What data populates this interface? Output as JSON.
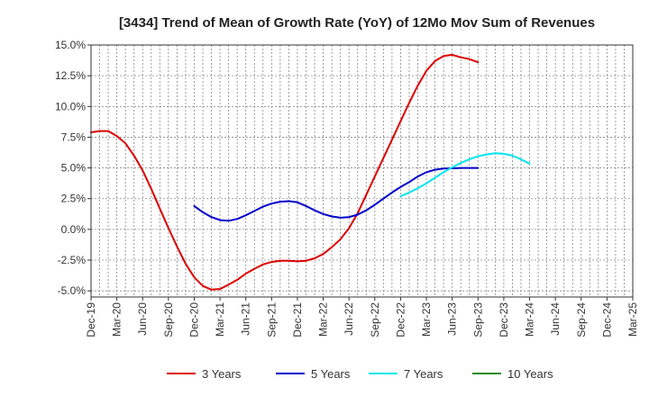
{
  "chart_data": {
    "type": "line",
    "title": "[3434]  Trend of Mean of Growth Rate (YoY) of 12Mo Mov Sum of Revenues",
    "xlabel": "",
    "ylabel": "",
    "ylim": [
      -5.5,
      15.0
    ],
    "y_ticks": [
      15.0,
      12.5,
      10.0,
      7.5,
      5.0,
      2.5,
      0.0,
      -2.5,
      -5.0
    ],
    "y_tick_labels": [
      "15.0%",
      "12.5%",
      "10.0%",
      "7.5%",
      "5.0%",
      "2.5%",
      "0.0%",
      "-2.5%",
      "-5.0%"
    ],
    "x_tick_labels": [
      "Dec-19",
      "Mar-20",
      "Jun-20",
      "Sep-20",
      "Dec-20",
      "Mar-21",
      "Jun-21",
      "Sep-21",
      "Dec-21",
      "Mar-22",
      "Jun-22",
      "Sep-22",
      "Dec-22",
      "Mar-23",
      "Jun-23",
      "Sep-23",
      "Dec-23",
      "Mar-24",
      "Jun-24",
      "Sep-24",
      "Dec-24",
      "Mar-25"
    ],
    "months_total": 63,
    "grid": true,
    "legend_position": "bottom",
    "series": [
      {
        "name": "3 Years",
        "color": "#dd0000",
        "points": [
          [
            0,
            7.9
          ],
          [
            1,
            8.0
          ],
          [
            2,
            8.0
          ],
          [
            3,
            7.6
          ],
          [
            4,
            7.0
          ],
          [
            5,
            6.0
          ],
          [
            6,
            4.8
          ],
          [
            7,
            3.3
          ],
          [
            8,
            1.7
          ],
          [
            9,
            0.1
          ],
          [
            10,
            -1.4
          ],
          [
            11,
            -2.8
          ],
          [
            12,
            -3.9
          ],
          [
            13,
            -4.6
          ],
          [
            14,
            -4.9
          ],
          [
            15,
            -4.85
          ],
          [
            16,
            -4.5
          ],
          [
            17,
            -4.1
          ],
          [
            18,
            -3.6
          ],
          [
            19,
            -3.2
          ],
          [
            20,
            -2.85
          ],
          [
            21,
            -2.65
          ],
          [
            22,
            -2.55
          ],
          [
            23,
            -2.55
          ],
          [
            24,
            -2.6
          ],
          [
            25,
            -2.55
          ],
          [
            26,
            -2.35
          ],
          [
            27,
            -2.0
          ],
          [
            28,
            -1.45
          ],
          [
            29,
            -0.8
          ],
          [
            30,
            0.1
          ],
          [
            31,
            1.3
          ],
          [
            32,
            2.8
          ],
          [
            33,
            4.3
          ],
          [
            34,
            5.8
          ],
          [
            35,
            7.3
          ],
          [
            36,
            8.8
          ],
          [
            37,
            10.3
          ],
          [
            38,
            11.7
          ],
          [
            39,
            12.9
          ],
          [
            40,
            13.7
          ],
          [
            41,
            14.1
          ],
          [
            42,
            14.2
          ],
          [
            43,
            14.0
          ],
          [
            44,
            13.85
          ],
          [
            45,
            13.6
          ]
        ]
      },
      {
        "name": "5 Years",
        "color": "#0000cc",
        "points": [
          [
            12,
            1.9
          ],
          [
            13,
            1.4
          ],
          [
            14,
            1.0
          ],
          [
            15,
            0.75
          ],
          [
            16,
            0.7
          ],
          [
            17,
            0.85
          ],
          [
            18,
            1.15
          ],
          [
            19,
            1.5
          ],
          [
            20,
            1.85
          ],
          [
            21,
            2.1
          ],
          [
            22,
            2.25
          ],
          [
            23,
            2.3
          ],
          [
            24,
            2.2
          ],
          [
            25,
            1.9
          ],
          [
            26,
            1.55
          ],
          [
            27,
            1.25
          ],
          [
            28,
            1.05
          ],
          [
            29,
            0.95
          ],
          [
            30,
            1.0
          ],
          [
            31,
            1.2
          ],
          [
            32,
            1.55
          ],
          [
            33,
            2.0
          ],
          [
            34,
            2.5
          ],
          [
            35,
            3.0
          ],
          [
            36,
            3.45
          ],
          [
            37,
            3.85
          ],
          [
            38,
            4.3
          ],
          [
            39,
            4.65
          ],
          [
            40,
            4.85
          ],
          [
            41,
            4.95
          ],
          [
            42,
            4.97
          ],
          [
            43,
            5.0
          ],
          [
            44,
            5.0
          ],
          [
            45,
            5.0
          ]
        ]
      },
      {
        "name": "7 Years",
        "color": "#00e5ee",
        "points": [
          [
            36,
            2.7
          ],
          [
            37,
            3.0
          ],
          [
            38,
            3.35
          ],
          [
            39,
            3.75
          ],
          [
            40,
            4.2
          ],
          [
            41,
            4.65
          ],
          [
            42,
            5.05
          ],
          [
            43,
            5.4
          ],
          [
            44,
            5.7
          ],
          [
            45,
            5.95
          ],
          [
            46,
            6.1
          ],
          [
            47,
            6.2
          ],
          [
            48,
            6.15
          ],
          [
            49,
            6.0
          ],
          [
            50,
            5.7
          ],
          [
            51,
            5.35
          ]
        ]
      },
      {
        "name": "10 Years",
        "color": "#228b22",
        "points": []
      }
    ]
  }
}
